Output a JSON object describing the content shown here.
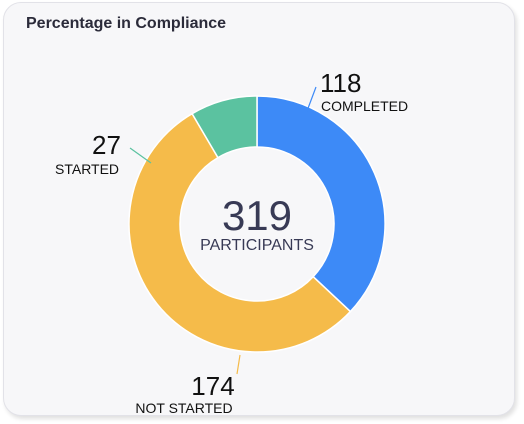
{
  "card": {
    "title": "Percentage in Compliance"
  },
  "chart_data": {
    "type": "pie",
    "variant": "donut",
    "title": "Percentage in Compliance",
    "total": {
      "value": "319",
      "label": "PARTICIPANTS"
    },
    "slices": [
      {
        "label": "COMPLETED",
        "value": 118,
        "display": "118",
        "color": "#3d8af7",
        "label_position": "top-right"
      },
      {
        "label": "NOT STARTED",
        "value": 174,
        "display": "174",
        "color": "#f5bb4a",
        "label_position": "bottom"
      },
      {
        "label": "STARTED",
        "value": 27,
        "display": "27",
        "color": "#5bc2a0",
        "label_position": "left"
      }
    ],
    "start_angle": "top, clockwise"
  }
}
